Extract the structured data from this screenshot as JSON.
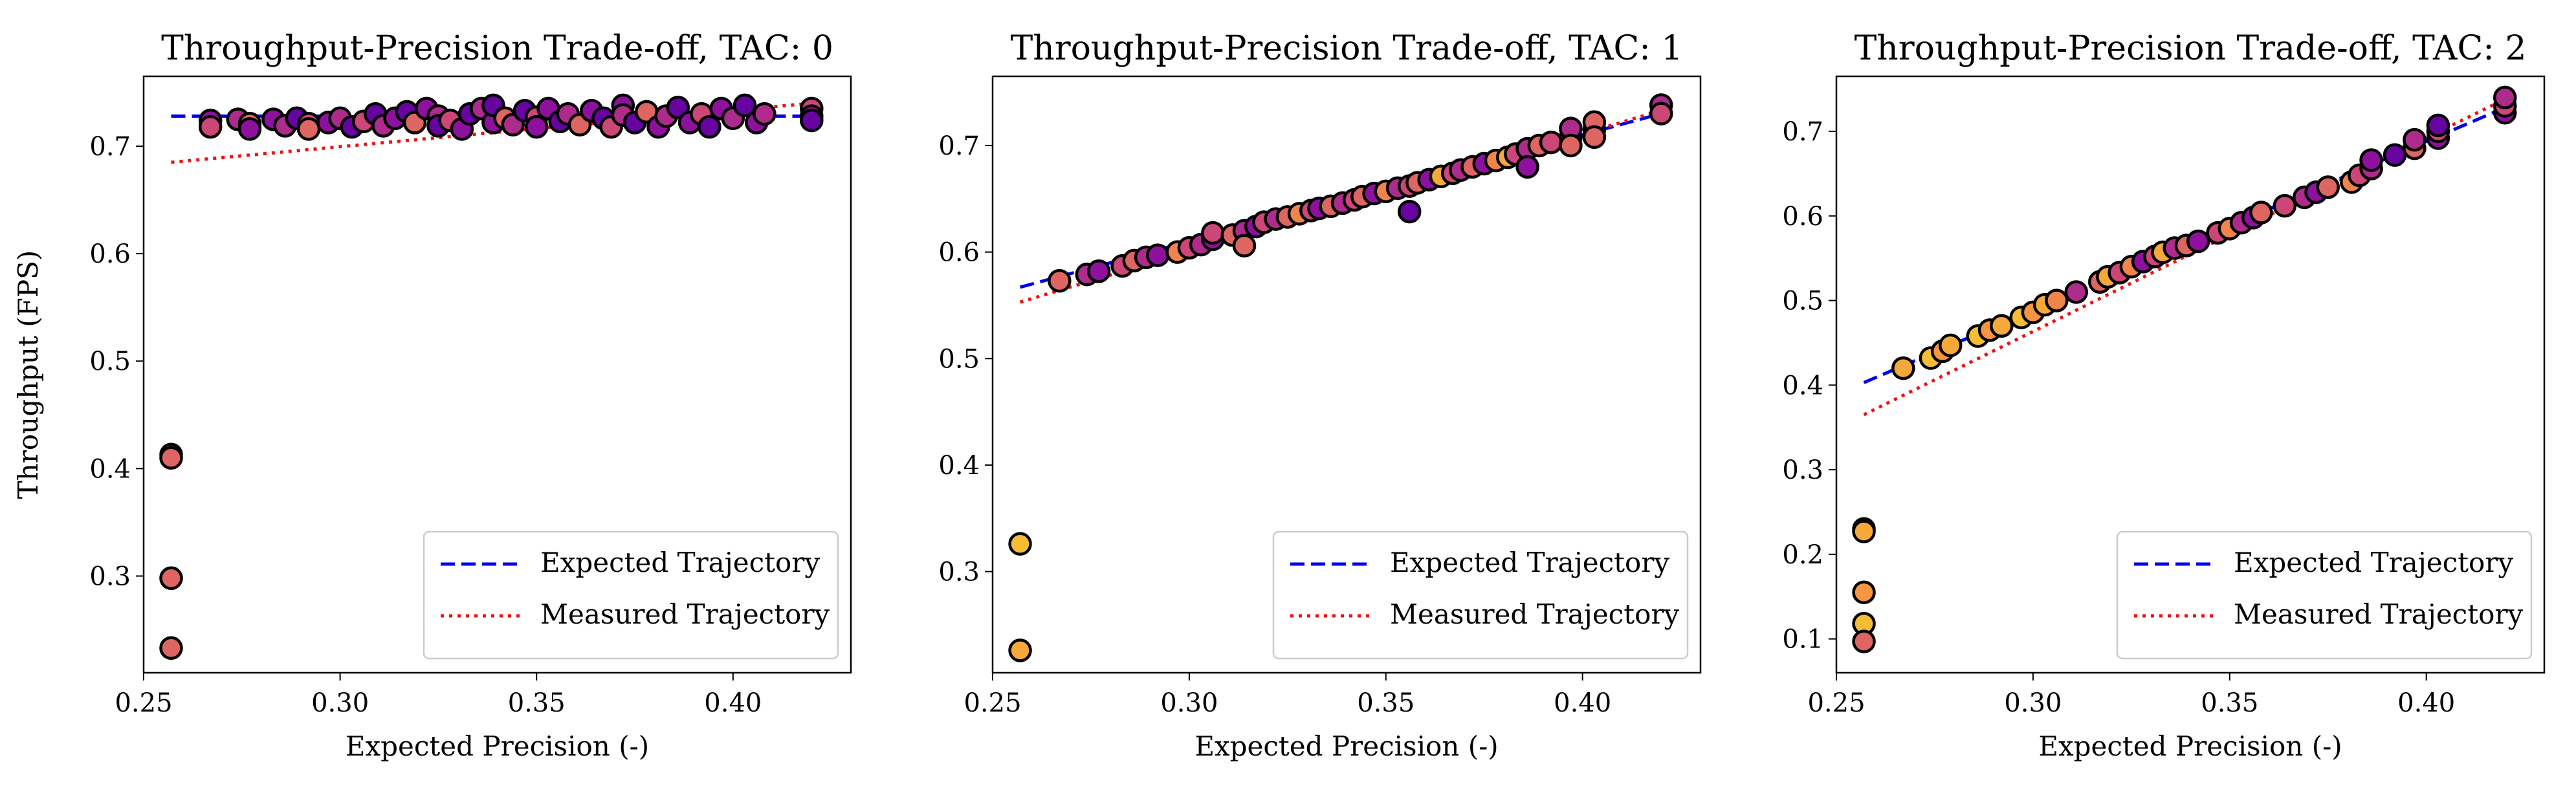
{
  "chart_data": [
    {
      "type": "scatter",
      "title": "Throughput-Precision Trade-off, TAC: 0",
      "xlabel": "Expected Precision (-)",
      "ylabel": "Throughput (FPS)",
      "xlim": [
        0.25,
        0.43
      ],
      "ylim": [
        0.21,
        0.765
      ],
      "xticks": [
        "0.25",
        "0.30",
        "0.35",
        "0.40"
      ],
      "yticks": [
        "0.3",
        "0.4",
        "0.5",
        "0.6",
        "0.7"
      ],
      "legend_position": "lower-right",
      "legend": [
        "Expected Trajectory",
        "Measured Trajectory"
      ],
      "expected_trajectory": {
        "x": [
          0.257,
          0.42
        ],
        "y": [
          0.728,
          0.728
        ],
        "color": "#0000ee",
        "style": "dashed"
      },
      "measured_trajectory": {
        "x": [
          0.257,
          0.42
        ],
        "y": [
          0.685,
          0.74
        ],
        "color": "#ee1111",
        "style": "dotted"
      },
      "points": [
        [
          0.257,
          0.413,
          0.55
        ],
        [
          0.257,
          0.41,
          0.6
        ],
        [
          0.257,
          0.298,
          0.6
        ],
        [
          0.257,
          0.233,
          0.6
        ],
        [
          0.267,
          0.724,
          0.3
        ],
        [
          0.267,
          0.718,
          0.5
        ],
        [
          0.274,
          0.725,
          0.4
        ],
        [
          0.277,
          0.721,
          0.6
        ],
        [
          0.277,
          0.716,
          0.3
        ],
        [
          0.283,
          0.725,
          0.3
        ],
        [
          0.286,
          0.719,
          0.4
        ],
        [
          0.289,
          0.726,
          0.2
        ],
        [
          0.292,
          0.721,
          0.5
        ],
        [
          0.292,
          0.716,
          0.6
        ],
        [
          0.297,
          0.722,
          0.3
        ],
        [
          0.3,
          0.726,
          0.4
        ],
        [
          0.303,
          0.718,
          0.2
        ],
        [
          0.306,
          0.723,
          0.5
        ],
        [
          0.309,
          0.73,
          0.2
        ],
        [
          0.311,
          0.719,
          0.4
        ],
        [
          0.314,
          0.726,
          0.3
        ],
        [
          0.317,
          0.732,
          0.2
        ],
        [
          0.319,
          0.722,
          0.6
        ],
        [
          0.322,
          0.735,
          0.3
        ],
        [
          0.325,
          0.728,
          0.4
        ],
        [
          0.325,
          0.719,
          0.2
        ],
        [
          0.328,
          0.724,
          0.5
        ],
        [
          0.331,
          0.716,
          0.3
        ],
        [
          0.333,
          0.73,
          0.2
        ],
        [
          0.336,
          0.735,
          0.4
        ],
        [
          0.339,
          0.722,
          0.3
        ],
        [
          0.339,
          0.738,
          0.2
        ],
        [
          0.342,
          0.726,
          0.6
        ],
        [
          0.344,
          0.72,
          0.4
        ],
        [
          0.347,
          0.733,
          0.2
        ],
        [
          0.35,
          0.727,
          0.5
        ],
        [
          0.35,
          0.718,
          0.3
        ],
        [
          0.353,
          0.735,
          0.3
        ],
        [
          0.356,
          0.723,
          0.2
        ],
        [
          0.358,
          0.73,
          0.4
        ],
        [
          0.361,
          0.72,
          0.6
        ],
        [
          0.364,
          0.733,
          0.3
        ],
        [
          0.367,
          0.726,
          0.2
        ],
        [
          0.369,
          0.718,
          0.5
        ],
        [
          0.372,
          0.738,
          0.3
        ],
        [
          0.372,
          0.729,
          0.4
        ],
        [
          0.375,
          0.722,
          0.2
        ],
        [
          0.378,
          0.732,
          0.6
        ],
        [
          0.381,
          0.718,
          0.3
        ],
        [
          0.383,
          0.728,
          0.4
        ],
        [
          0.386,
          0.736,
          0.2
        ],
        [
          0.389,
          0.722,
          0.3
        ],
        [
          0.392,
          0.73,
          0.5
        ],
        [
          0.394,
          0.718,
          0.2
        ],
        [
          0.397,
          0.735,
          0.3
        ],
        [
          0.4,
          0.726,
          0.4
        ],
        [
          0.403,
          0.738,
          0.2
        ],
        [
          0.406,
          0.722,
          0.3
        ],
        [
          0.408,
          0.73,
          0.4
        ],
        [
          0.42,
          0.735,
          0.5
        ],
        [
          0.42,
          0.728,
          0.3
        ],
        [
          0.42,
          0.724,
          0.2
        ]
      ]
    },
    {
      "type": "scatter",
      "title": "Throughput-Precision Trade-off, TAC: 1",
      "xlabel": "Expected Precision (-)",
      "ylabel": "",
      "xlim": [
        0.25,
        0.43
      ],
      "ylim": [
        0.205,
        0.765
      ],
      "xticks": [
        "0.25",
        "0.30",
        "0.35",
        "0.40"
      ],
      "yticks": [
        "0.3",
        "0.4",
        "0.5",
        "0.6",
        "0.7"
      ],
      "legend_position": "lower-right",
      "legend": [
        "Expected Trajectory",
        "Measured Trajectory"
      ],
      "expected_trajectory": {
        "x": [
          0.257,
          0.42
        ],
        "y": [
          0.567,
          0.73
        ],
        "color": "#0000ee",
        "style": "dashed"
      },
      "measured_trajectory": {
        "x": [
          0.257,
          0.42
        ],
        "y": [
          0.553,
          0.733
        ],
        "color": "#ee1111",
        "style": "dotted"
      },
      "points": [
        [
          0.257,
          0.326,
          0.85
        ],
        [
          0.257,
          0.226,
          0.8
        ],
        [
          0.267,
          0.573,
          0.6
        ],
        [
          0.274,
          0.579,
          0.4
        ],
        [
          0.277,
          0.582,
          0.3
        ],
        [
          0.283,
          0.587,
          0.5
        ],
        [
          0.286,
          0.592,
          0.6
        ],
        [
          0.289,
          0.595,
          0.4
        ],
        [
          0.292,
          0.597,
          0.3
        ],
        [
          0.297,
          0.6,
          0.7
        ],
        [
          0.3,
          0.604,
          0.5
        ],
        [
          0.303,
          0.607,
          0.4
        ],
        [
          0.306,
          0.612,
          0.3
        ],
        [
          0.306,
          0.618,
          0.5
        ],
        [
          0.311,
          0.616,
          0.6
        ],
        [
          0.314,
          0.62,
          0.4
        ],
        [
          0.314,
          0.606,
          0.6
        ],
        [
          0.317,
          0.624,
          0.3
        ],
        [
          0.319,
          0.628,
          0.5
        ],
        [
          0.322,
          0.631,
          0.4
        ],
        [
          0.325,
          0.633,
          0.6
        ],
        [
          0.328,
          0.636,
          0.7
        ],
        [
          0.331,
          0.639,
          0.5
        ],
        [
          0.333,
          0.641,
          0.3
        ],
        [
          0.336,
          0.643,
          0.6
        ],
        [
          0.339,
          0.646,
          0.4
        ],
        [
          0.342,
          0.649,
          0.5
        ],
        [
          0.344,
          0.652,
          0.6
        ],
        [
          0.347,
          0.655,
          0.3
        ],
        [
          0.35,
          0.657,
          0.7
        ],
        [
          0.353,
          0.66,
          0.4
        ],
        [
          0.356,
          0.662,
          0.5
        ],
        [
          0.356,
          0.638,
          0.2
        ],
        [
          0.358,
          0.665,
          0.6
        ],
        [
          0.361,
          0.668,
          0.3
        ],
        [
          0.364,
          0.671,
          0.8
        ],
        [
          0.367,
          0.674,
          0.5
        ],
        [
          0.369,
          0.677,
          0.4
        ],
        [
          0.372,
          0.68,
          0.6
        ],
        [
          0.375,
          0.683,
          0.3
        ],
        [
          0.378,
          0.686,
          0.7
        ],
        [
          0.381,
          0.689,
          0.8
        ],
        [
          0.383,
          0.692,
          0.5
        ],
        [
          0.386,
          0.697,
          0.4
        ],
        [
          0.386,
          0.68,
          0.3
        ],
        [
          0.389,
          0.7,
          0.6
        ],
        [
          0.392,
          0.703,
          0.5
        ],
        [
          0.397,
          0.708,
          0.6
        ],
        [
          0.397,
          0.716,
          0.4
        ],
        [
          0.397,
          0.7,
          0.6
        ],
        [
          0.403,
          0.715,
          0.3
        ],
        [
          0.403,
          0.722,
          0.6
        ],
        [
          0.403,
          0.708,
          0.6
        ],
        [
          0.42,
          0.738,
          0.4
        ],
        [
          0.42,
          0.73,
          0.5
        ]
      ]
    },
    {
      "type": "scatter",
      "title": "Throughput-Precision Trade-off, TAC: 2",
      "xlabel": "Expected Precision (-)",
      "ylabel": "",
      "xlim": [
        0.25,
        0.43
      ],
      "ylim": [
        0.06,
        0.765
      ],
      "xticks": [
        "0.25",
        "0.30",
        "0.35",
        "0.40"
      ],
      "yticks": [
        "0.1",
        "0.2",
        "0.3",
        "0.4",
        "0.5",
        "0.6",
        "0.7"
      ],
      "legend_position": "lower-right",
      "legend": [
        "Expected Trajectory",
        "Measured Trajectory"
      ],
      "expected_trajectory": {
        "x": [
          0.257,
          0.42
        ],
        "y": [
          0.403,
          0.728
        ],
        "color": "#0000ee",
        "style": "dashed"
      },
      "measured_trajectory": {
        "x": [
          0.257,
          0.42
        ],
        "y": [
          0.365,
          0.738
        ],
        "color": "#ee1111",
        "style": "dotted"
      },
      "points": [
        [
          0.257,
          0.23,
          0.85
        ],
        [
          0.257,
          0.227,
          0.8
        ],
        [
          0.257,
          0.155,
          0.75
        ],
        [
          0.257,
          0.118,
          0.85
        ],
        [
          0.257,
          0.097,
          0.6
        ],
        [
          0.267,
          0.42,
          0.8
        ],
        [
          0.274,
          0.432,
          0.85
        ],
        [
          0.277,
          0.44,
          0.75
        ],
        [
          0.279,
          0.447,
          0.8
        ],
        [
          0.286,
          0.458,
          0.85
        ],
        [
          0.289,
          0.465,
          0.75
        ],
        [
          0.292,
          0.47,
          0.8
        ],
        [
          0.297,
          0.48,
          0.85
        ],
        [
          0.3,
          0.486,
          0.75
        ],
        [
          0.303,
          0.495,
          0.8
        ],
        [
          0.306,
          0.5,
          0.7
        ],
        [
          0.311,
          0.51,
          0.4
        ],
        [
          0.317,
          0.522,
          0.6
        ],
        [
          0.319,
          0.528,
          0.8
        ],
        [
          0.322,
          0.533,
          0.5
        ],
        [
          0.325,
          0.54,
          0.7
        ],
        [
          0.328,
          0.546,
          0.3
        ],
        [
          0.331,
          0.552,
          0.5
        ],
        [
          0.333,
          0.557,
          0.8
        ],
        [
          0.336,
          0.562,
          0.4
        ],
        [
          0.339,
          0.565,
          0.6
        ],
        [
          0.342,
          0.57,
          0.3
        ],
        [
          0.347,
          0.58,
          0.5
        ],
        [
          0.35,
          0.585,
          0.7
        ],
        [
          0.353,
          0.592,
          0.4
        ],
        [
          0.356,
          0.598,
          0.3
        ],
        [
          0.358,
          0.604,
          0.6
        ],
        [
          0.364,
          0.612,
          0.5
        ],
        [
          0.369,
          0.622,
          0.4
        ],
        [
          0.372,
          0.628,
          0.3
        ],
        [
          0.375,
          0.634,
          0.6
        ],
        [
          0.381,
          0.64,
          0.7
        ],
        [
          0.383,
          0.648,
          0.5
        ],
        [
          0.386,
          0.656,
          0.4
        ],
        [
          0.386,
          0.666,
          0.3
        ],
        [
          0.392,
          0.672,
          0.2
        ],
        [
          0.397,
          0.68,
          0.6
        ],
        [
          0.397,
          0.69,
          0.4
        ],
        [
          0.403,
          0.692,
          0.3
        ],
        [
          0.403,
          0.7,
          0.5
        ],
        [
          0.403,
          0.707,
          0.2
        ],
        [
          0.42,
          0.722,
          0.3
        ],
        [
          0.42,
          0.73,
          0.5
        ],
        [
          0.42,
          0.74,
          0.4
        ]
      ]
    }
  ]
}
